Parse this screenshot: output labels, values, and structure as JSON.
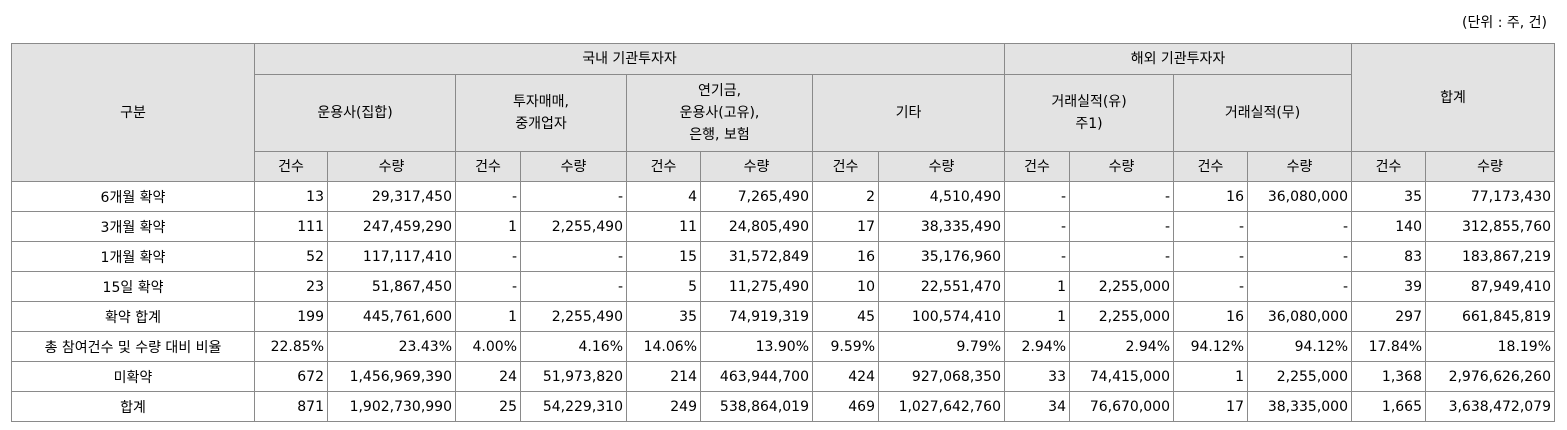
{
  "unit_label": "(단위 : 주, 건)",
  "headers": {
    "category": "구분",
    "domestic": "국내 기관투자자",
    "overseas": "해외 기관투자자",
    "total": "합계",
    "groups": [
      {
        "l1": "운용사(집합)",
        "l2": "",
        "l3": ""
      },
      {
        "l1": "투자매매,",
        "l2": "중개업자",
        "l3": ""
      },
      {
        "l1": "연기금,",
        "l2": "운용사(고유),",
        "l3": "은행, 보험"
      },
      {
        "l1": "기타",
        "l2": "",
        "l3": ""
      },
      {
        "l1": "거래실적(유)",
        "l2": "주1)",
        "l3": ""
      },
      {
        "l1": "거래실적(무)",
        "l2": "",
        "l3": ""
      }
    ],
    "count": "건수",
    "quantity": "수량"
  },
  "rows": [
    {
      "label": "6개월 확약",
      "cells": [
        "13",
        "29,317,450",
        "-",
        "-",
        "4",
        "7,265,490",
        "2",
        "4,510,490",
        "-",
        "-",
        "16",
        "36,080,000",
        "35",
        "77,173,430"
      ]
    },
    {
      "label": "3개월 확약",
      "cells": [
        "111",
        "247,459,290",
        "1",
        "2,255,490",
        "11",
        "24,805,490",
        "17",
        "38,335,490",
        "-",
        "-",
        "-",
        "-",
        "140",
        "312,855,760"
      ]
    },
    {
      "label": "1개월 확약",
      "cells": [
        "52",
        "117,117,410",
        "-",
        "-",
        "15",
        "31,572,849",
        "16",
        "35,176,960",
        "-",
        "-",
        "-",
        "-",
        "83",
        "183,867,219"
      ]
    },
    {
      "label": "15일 확약",
      "cells": [
        "23",
        "51,867,450",
        "-",
        "-",
        "5",
        "11,275,490",
        "10",
        "22,551,470",
        "1",
        "2,255,000",
        "-",
        "-",
        "39",
        "87,949,410"
      ]
    },
    {
      "label": "확약 합계",
      "cells": [
        "199",
        "445,761,600",
        "1",
        "2,255,490",
        "35",
        "74,919,319",
        "45",
        "100,574,410",
        "1",
        "2,255,000",
        "16",
        "36,080,000",
        "297",
        "661,845,819"
      ]
    },
    {
      "label": "총 참여건수 및 수량 대비 비율",
      "cells": [
        "22.85%",
        "23.43%",
        "4.00%",
        "4.16%",
        "14.06%",
        "13.90%",
        "9.59%",
        "9.79%",
        "2.94%",
        "2.94%",
        "94.12%",
        "94.12%",
        "17.84%",
        "18.19%"
      ]
    },
    {
      "label": "미확약",
      "cells": [
        "672",
        "1,456,969,390",
        "24",
        "51,973,820",
        "214",
        "463,944,700",
        "424",
        "927,068,350",
        "33",
        "74,415,000",
        "1",
        "2,255,000",
        "1,368",
        "2,976,626,260"
      ]
    },
    {
      "label": "합계",
      "cells": [
        "871",
        "1,902,730,990",
        "25",
        "54,229,310",
        "249",
        "538,864,019",
        "469",
        "1,027,642,760",
        "34",
        "76,670,000",
        "17",
        "38,335,000",
        "1,665",
        "3,638,472,079"
      ]
    }
  ]
}
